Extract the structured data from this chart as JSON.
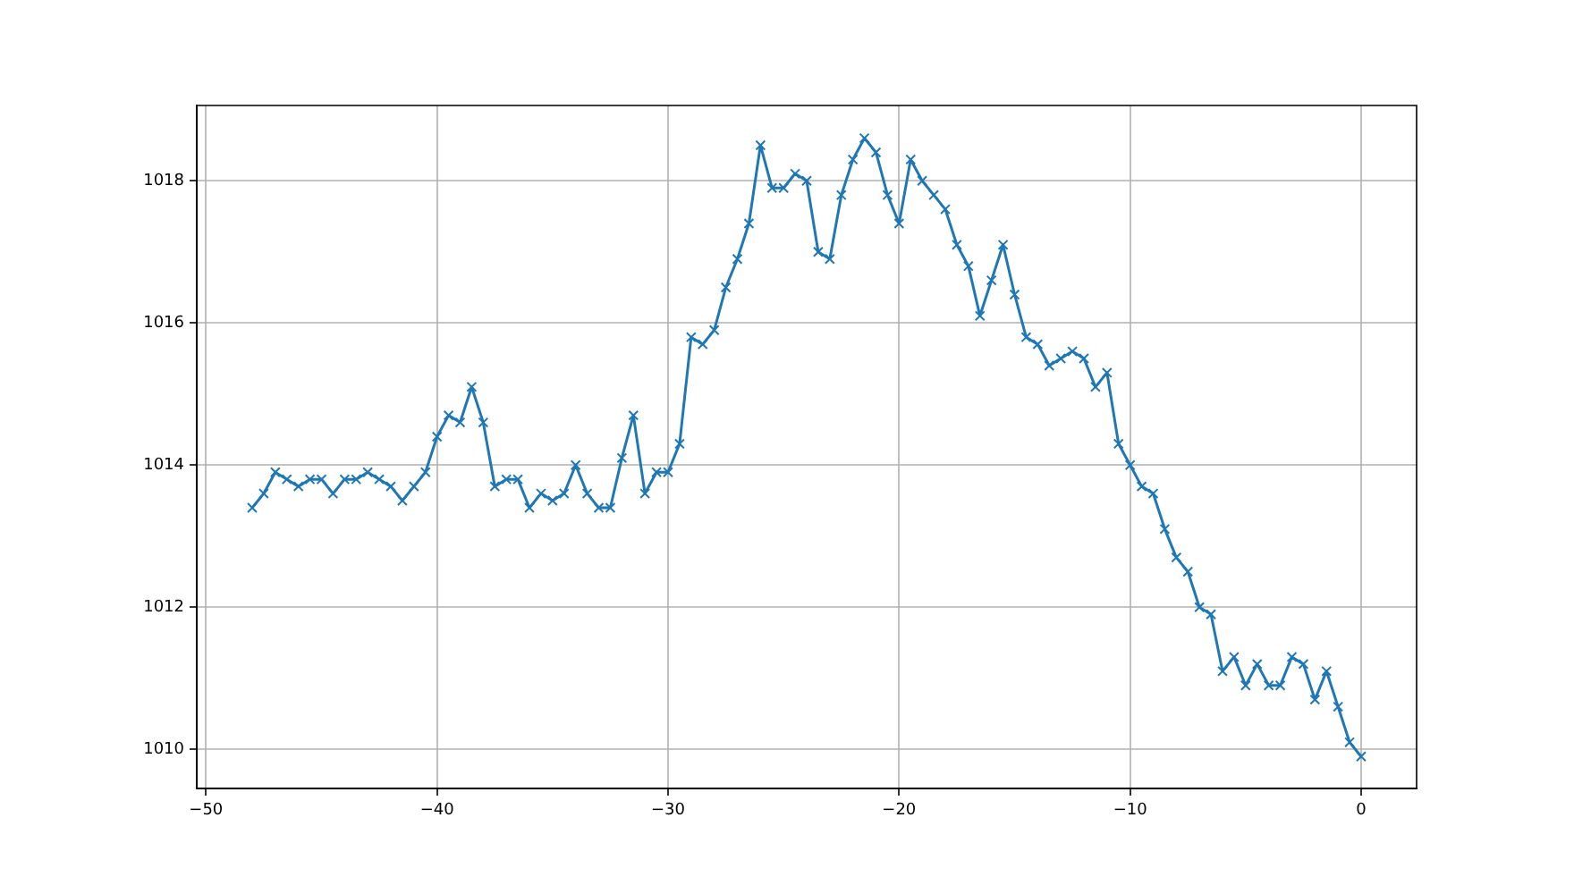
{
  "chart_data": {
    "type": "line",
    "x": [
      -48,
      -47.5,
      -47,
      -46.5,
      -46,
      -45.5,
      -45,
      -44.5,
      -44,
      -43.5,
      -43,
      -42.5,
      -42,
      -41.5,
      -41,
      -40.5,
      -40,
      -39.5,
      -39,
      -38.5,
      -38,
      -37.5,
      -37,
      -36.5,
      -36,
      -35.5,
      -35,
      -34.5,
      -34,
      -33.5,
      -33,
      -32.5,
      -32,
      -31.5,
      -31,
      -30.5,
      -30,
      -29.5,
      -29,
      -28.5,
      -28,
      -27.5,
      -27,
      -26.5,
      -26,
      -25.5,
      -25,
      -24.5,
      -24,
      -23.5,
      -23,
      -22.5,
      -22,
      -21.5,
      -21,
      -20.5,
      -20,
      -19.5,
      -19,
      -18.5,
      -18,
      -17.5,
      -17,
      -16.5,
      -16,
      -15.5,
      -15,
      -14.5,
      -14,
      -13.5,
      -13,
      -12.5,
      -12,
      -11.5,
      -11,
      -10.5,
      -10,
      -9.5,
      -9,
      -8.5,
      -8,
      -7.5,
      -7,
      -6.5,
      -6,
      -5.5,
      -5,
      -4.5,
      -4,
      -3.5,
      -3,
      -2.5,
      -2,
      -1.5,
      -1,
      -0.5,
      0
    ],
    "series": [
      {
        "color": "#1f77b4",
        "values": [
          1013.4,
          1013.6,
          1013.9,
          1013.8,
          1013.7,
          1013.8,
          1013.8,
          1013.6,
          1013.8,
          1013.8,
          1013.9,
          1013.8,
          1013.7,
          1013.5,
          1013.7,
          1013.9,
          1014.4,
          1014.7,
          1014.6,
          1015.1,
          1014.6,
          1013.7,
          1013.8,
          1013.8,
          1013.4,
          1013.6,
          1013.5,
          1013.6,
          1014.0,
          1013.6,
          1013.4,
          1013.4,
          1014.1,
          1014.7,
          1013.6,
          1013.9,
          1013.9,
          1014.3,
          1015.8,
          1015.7,
          1015.9,
          1016.5,
          1016.9,
          1017.4,
          1018.5,
          1017.9,
          1017.9,
          1018.1,
          1018.0,
          1017.0,
          1016.9,
          1017.8,
          1018.3,
          1018.6,
          1018.4,
          1017.8,
          1017.4,
          1018.3,
          1018.0,
          1017.8,
          1017.6,
          1017.1,
          1016.8,
          1016.1,
          1016.6,
          1017.1,
          1016.4,
          1015.8,
          1015.7,
          1015.4,
          1015.5,
          1015.6,
          1015.5,
          1015.1,
          1015.3,
          1014.3,
          1014.0,
          1013.7,
          1013.6,
          1013.1,
          1012.7,
          1012.5,
          1012.0,
          1011.9,
          1011.1,
          1011.3,
          1010.9,
          1011.2,
          1010.9,
          1010.9,
          1011.3,
          1011.2,
          1010.7,
          1011.1,
          1010.6,
          1010.1,
          1009.9
        ]
      }
    ],
    "xlim": [
      -50.4,
      2.4
    ],
    "xticks": [
      -50,
      -40,
      -30,
      -20,
      -10,
      0
    ],
    "ylim": [
      1009.45,
      1019.06
    ],
    "yticks": [
      1010,
      1012,
      1014,
      1016,
      1018
    ],
    "grid": true,
    "marker": "cross",
    "line_style": "solid"
  }
}
